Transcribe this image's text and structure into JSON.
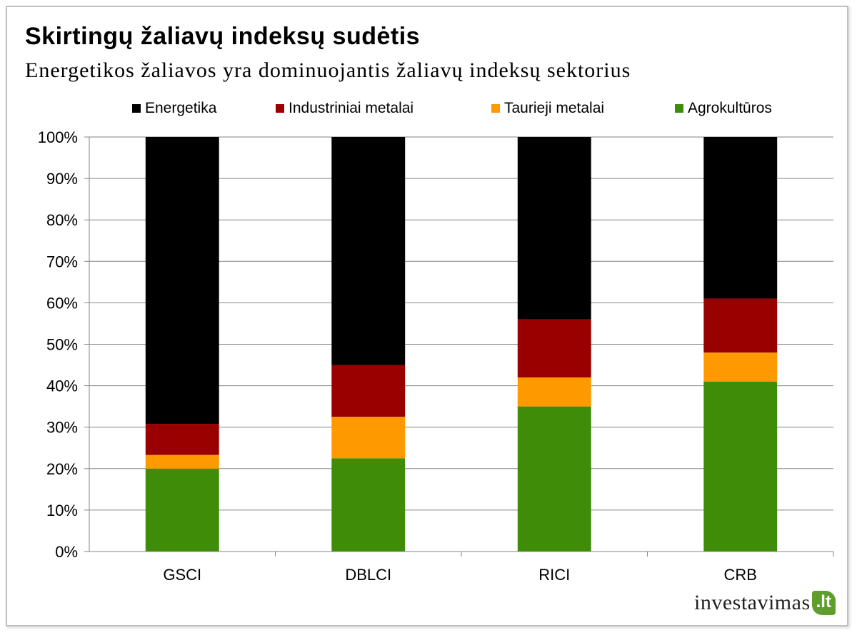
{
  "title": "Skirtingų žaliavų indeksų sudėtis",
  "subtitle": "Energetikos žaliavos yra dominuojantis žaliavų indeksų sektorius",
  "brand": {
    "name": "investavimas",
    "tld": ".lt"
  },
  "chart_data": {
    "type": "bar",
    "stacked": true,
    "categories": [
      "GSCI",
      "DBLCI",
      "RICI",
      "CRB"
    ],
    "series": [
      {
        "name": "Agrokultūros",
        "color": "#3f8c08",
        "values": [
          20,
          22.5,
          35,
          41
        ]
      },
      {
        "name": "Taurieji metalai",
        "color": "#ff9900",
        "values": [
          3.3,
          10,
          7,
          7
        ]
      },
      {
        "name": "Industriniai metalai",
        "color": "#990000",
        "values": [
          7.5,
          12.5,
          14,
          13
        ]
      },
      {
        "name": "Energetika",
        "color": "#000000",
        "values": [
          69.2,
          55,
          44,
          39
        ]
      }
    ],
    "legend_order": [
      "Energetika",
      "Industriniai metalai",
      "Taurieji metalai",
      "Agrokultūros"
    ],
    "y_ticks": [
      "0%",
      "10%",
      "20%",
      "30%",
      "40%",
      "50%",
      "60%",
      "70%",
      "80%",
      "90%",
      "100%"
    ],
    "ylim": [
      0,
      100
    ],
    "grid": true,
    "legend_position": "top"
  }
}
